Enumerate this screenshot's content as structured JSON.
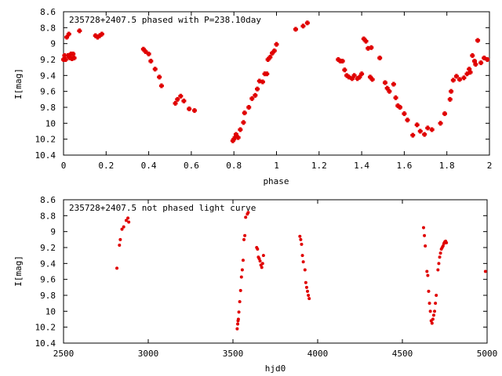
{
  "chart_data": [
    {
      "type": "scatter",
      "title": "235728+2407.5 phased with P=238.10day",
      "xlabel": "phase",
      "ylabel": "I[mag]",
      "xlim": [
        0,
        2
      ],
      "ylim": [
        10.4,
        8.6
      ],
      "y_inverted": true,
      "grid": false,
      "marker_color": "#e00000",
      "x_ticks": [
        "0",
        "0.2",
        "0.4",
        "0.6",
        "0.8",
        "1",
        "1.2",
        "1.4",
        "1.6",
        "1.8",
        "2"
      ],
      "y_ticks": [
        "8.6",
        "8.8",
        "9",
        "9.2",
        "9.4",
        "9.6",
        "9.8",
        "10",
        "10.2",
        "10.4"
      ],
      "series": [
        {
          "x": [
            0.0,
            0.005,
            0.01,
            0.015,
            0.02,
            0.025,
            0.03,
            0.035,
            0.04,
            0.045,
            0.05,
            0.075,
            0.15,
            0.16,
            0.17,
            0.18,
            0.375,
            0.385,
            0.4,
            0.41,
            0.43,
            0.45,
            0.46,
            0.525,
            0.535,
            0.55,
            0.565,
            0.59,
            0.615,
            0.795,
            0.8,
            0.805,
            0.81,
            0.82,
            0.83,
            0.845,
            0.85,
            0.87,
            0.885,
            0.9,
            0.91,
            0.92,
            0.935,
            0.945,
            0.955,
            0.96,
            0.97,
            0.98,
            0.99,
            1.0,
            1.09,
            1.125,
            1.145,
            1.29,
            1.3,
            1.31,
            1.32,
            1.33,
            1.34,
            1.355,
            1.365,
            1.38,
            1.39,
            1.4,
            1.41,
            1.42,
            1.43,
            1.44,
            1.445,
            1.45,
            1.485,
            1.51,
            1.52,
            1.53,
            1.55,
            1.56,
            1.57,
            1.58,
            1.6,
            1.615,
            1.64,
            1.66,
            1.675,
            1.695,
            1.71,
            1.73,
            1.77,
            1.79,
            1.815,
            1.82,
            1.83,
            1.845,
            1.86,
            1.88,
            1.895,
            1.905,
            1.91,
            1.92,
            1.93,
            1.935,
            1.945,
            1.96,
            1.975,
            1.99
          ],
          "y": [
            9.2,
            9.15,
            9.2,
            8.92,
            9.15,
            8.88,
            9.18,
            9.13,
            9.19,
            9.13,
            9.18,
            8.84,
            8.9,
            8.92,
            8.9,
            8.88,
            9.07,
            9.1,
            9.13,
            9.22,
            9.32,
            9.42,
            9.53,
            9.75,
            9.7,
            9.66,
            9.72,
            9.82,
            9.84,
            10.22,
            10.2,
            10.18,
            10.14,
            10.18,
            10.08,
            9.99,
            9.87,
            9.8,
            9.69,
            9.65,
            9.57,
            9.47,
            9.48,
            9.38,
            9.38,
            9.2,
            9.17,
            9.12,
            9.09,
            9.01,
            8.82,
            8.78,
            8.74,
            9.2,
            9.22,
            9.22,
            9.33,
            9.4,
            9.42,
            9.44,
            9.4,
            9.44,
            9.42,
            9.38,
            8.94,
            8.97,
            9.06,
            9.42,
            9.05,
            9.45,
            9.18,
            9.49,
            9.56,
            9.6,
            9.51,
            9.68,
            9.78,
            9.8,
            9.88,
            9.96,
            10.15,
            10.02,
            10.1,
            10.14,
            10.06,
            10.08,
            10.0,
            9.88,
            9.7,
            9.6,
            9.46,
            9.41,
            9.45,
            9.43,
            9.38,
            9.32,
            9.36,
            9.15,
            9.22,
            9.26,
            8.96,
            9.24,
            9.18,
            9.2
          ]
        }
      ]
    },
    {
      "type": "scatter",
      "title": "235728+2407.5 not phased light curve",
      "xlabel": "hjd0",
      "ylabel": "I[mag]",
      "xlim": [
        2500,
        5000
      ],
      "ylim": [
        10.4,
        8.6
      ],
      "y_inverted": true,
      "grid": false,
      "marker_color": "#e00000",
      "x_ticks": [
        "2500",
        "3000",
        "3500",
        "4000",
        "4500",
        "5000"
      ],
      "y_ticks": [
        "8.6",
        "8.8",
        "9",
        "9.2",
        "9.4",
        "9.6",
        "9.8",
        "10",
        "10.2",
        "10.4"
      ],
      "series": [
        {
          "x": [
            2815,
            2830,
            2835,
            2845,
            2855,
            2870,
            2880,
            2885,
            3525,
            3528,
            3530,
            3532,
            3535,
            3540,
            3545,
            3550,
            3555,
            3560,
            3565,
            3570,
            3575,
            3585,
            3590,
            3640,
            3645,
            3650,
            3655,
            3660,
            3665,
            3670,
            3675,
            3680,
            3895,
            3900,
            3905,
            3910,
            3915,
            3925,
            3930,
            3935,
            3940,
            3945,
            3950,
            4625,
            4630,
            4635,
            4645,
            4650,
            4655,
            4660,
            4665,
            4670,
            4675,
            4680,
            4685,
            4690,
            4695,
            4700,
            4710,
            4715,
            4720,
            4725,
            4730,
            4735,
            4740,
            4745,
            4750,
            4755,
            4760,
            4990
          ],
          "y": [
            9.46,
            9.17,
            9.1,
            8.97,
            8.94,
            8.86,
            8.83,
            8.88,
            10.22,
            10.16,
            10.12,
            10.1,
            10.01,
            9.88,
            9.74,
            9.57,
            9.48,
            9.36,
            9.1,
            9.05,
            8.82,
            8.78,
            8.76,
            9.2,
            9.22,
            9.32,
            9.34,
            9.37,
            9.42,
            9.45,
            9.4,
            9.3,
            9.06,
            9.1,
            9.16,
            9.3,
            9.38,
            9.48,
            9.64,
            9.7,
            9.75,
            9.8,
            9.84,
            8.95,
            9.05,
            9.18,
            9.5,
            9.55,
            9.75,
            9.9,
            10.0,
            10.12,
            10.15,
            10.1,
            10.05,
            10.0,
            9.9,
            9.8,
            9.48,
            9.4,
            9.32,
            9.27,
            9.22,
            9.2,
            9.18,
            9.15,
            9.13,
            9.12,
            9.14,
            9.5
          ]
        }
      ]
    }
  ]
}
